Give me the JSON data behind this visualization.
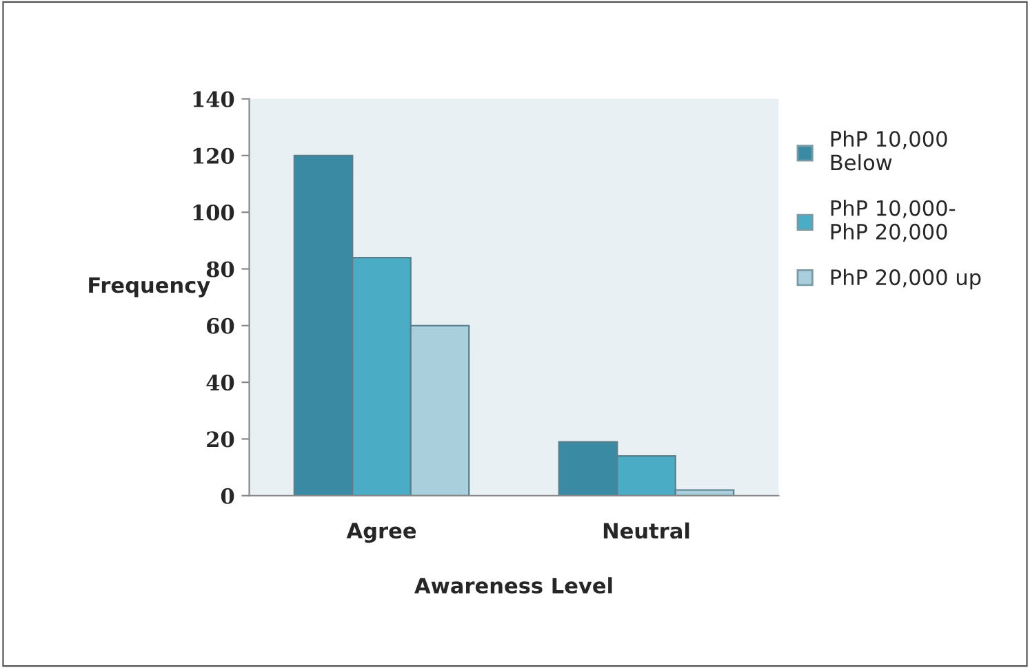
{
  "chart_data": {
    "type": "bar",
    "xlabel": "Awareness Level",
    "ylabel": "Frequency",
    "categories": [
      "Agree",
      "Neutral"
    ],
    "series": [
      {
        "name": "PhP 10,000\nBelow",
        "color": "#3b8aa3",
        "values": [
          120,
          19
        ]
      },
      {
        "name": "PhP 10,000-\nPhP 20,000",
        "color": "#4bacc6",
        "values": [
          84,
          14
        ]
      },
      {
        "name": "PhP 20,000 up",
        "color": "#a9cfdc",
        "values": [
          60,
          2
        ]
      }
    ],
    "ylim": [
      0,
      140
    ],
    "yticks": [
      0,
      20,
      40,
      60,
      80,
      100,
      120,
      140
    ],
    "grid": false,
    "legend": "right"
  }
}
